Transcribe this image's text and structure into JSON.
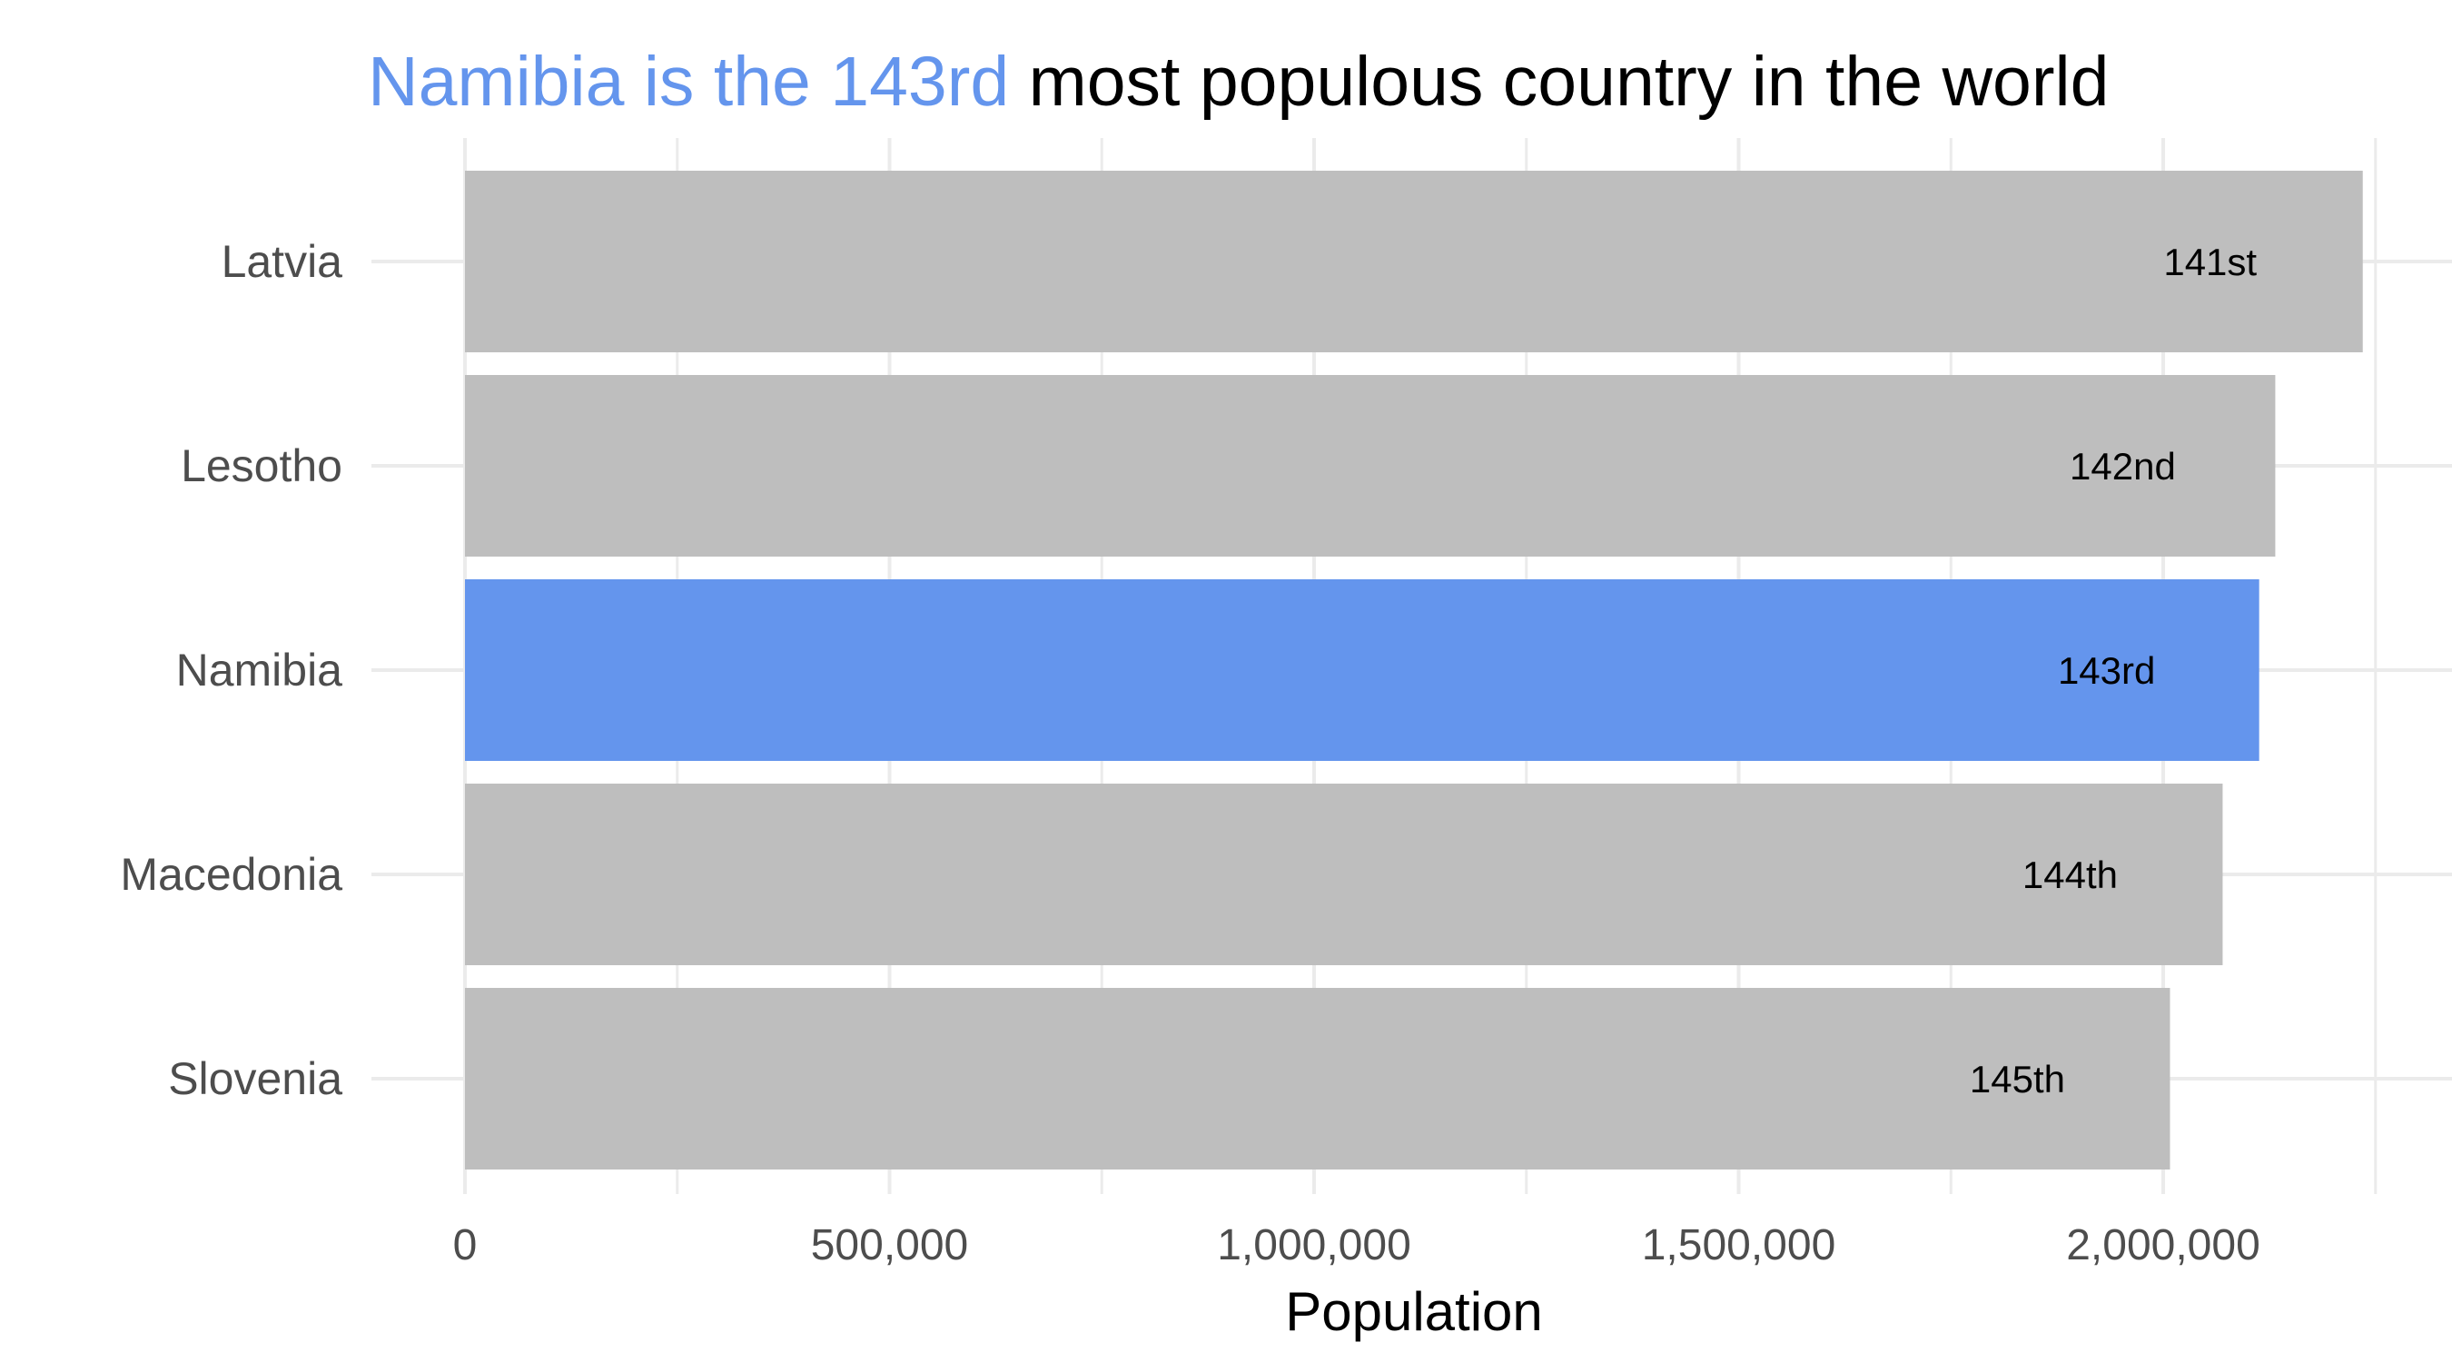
{
  "chart_data": {
    "type": "bar",
    "orientation": "horizontal",
    "title": {
      "highlight": "Namibia is the 143rd",
      "rest": " most populous country in the world"
    },
    "xlabel": "Population",
    "ylabel": "",
    "xlim": [
      0,
      2250000
    ],
    "x_ticks": [
      0,
      500000,
      1000000,
      1500000,
      2000000
    ],
    "x_tick_labels": [
      "0",
      "500,000",
      "1,000,000",
      "1,500,000",
      "2,000,000"
    ],
    "categories": [
      "Latvia",
      "Lesotho",
      "Namibia",
      "Macedonia",
      "Slovenia"
    ],
    "values": [
      2235000,
      2132000,
      2113000,
      2070000,
      2008000
    ],
    "bar_labels": [
      "141st",
      "142nd",
      "143rd",
      "144th",
      "145th"
    ],
    "highlight_category": "Namibia",
    "grid": true,
    "legend": "none",
    "colors": {
      "highlight": "#6495ED",
      "default": "#BEBEBE",
      "grid": "#EBEBEB"
    }
  }
}
